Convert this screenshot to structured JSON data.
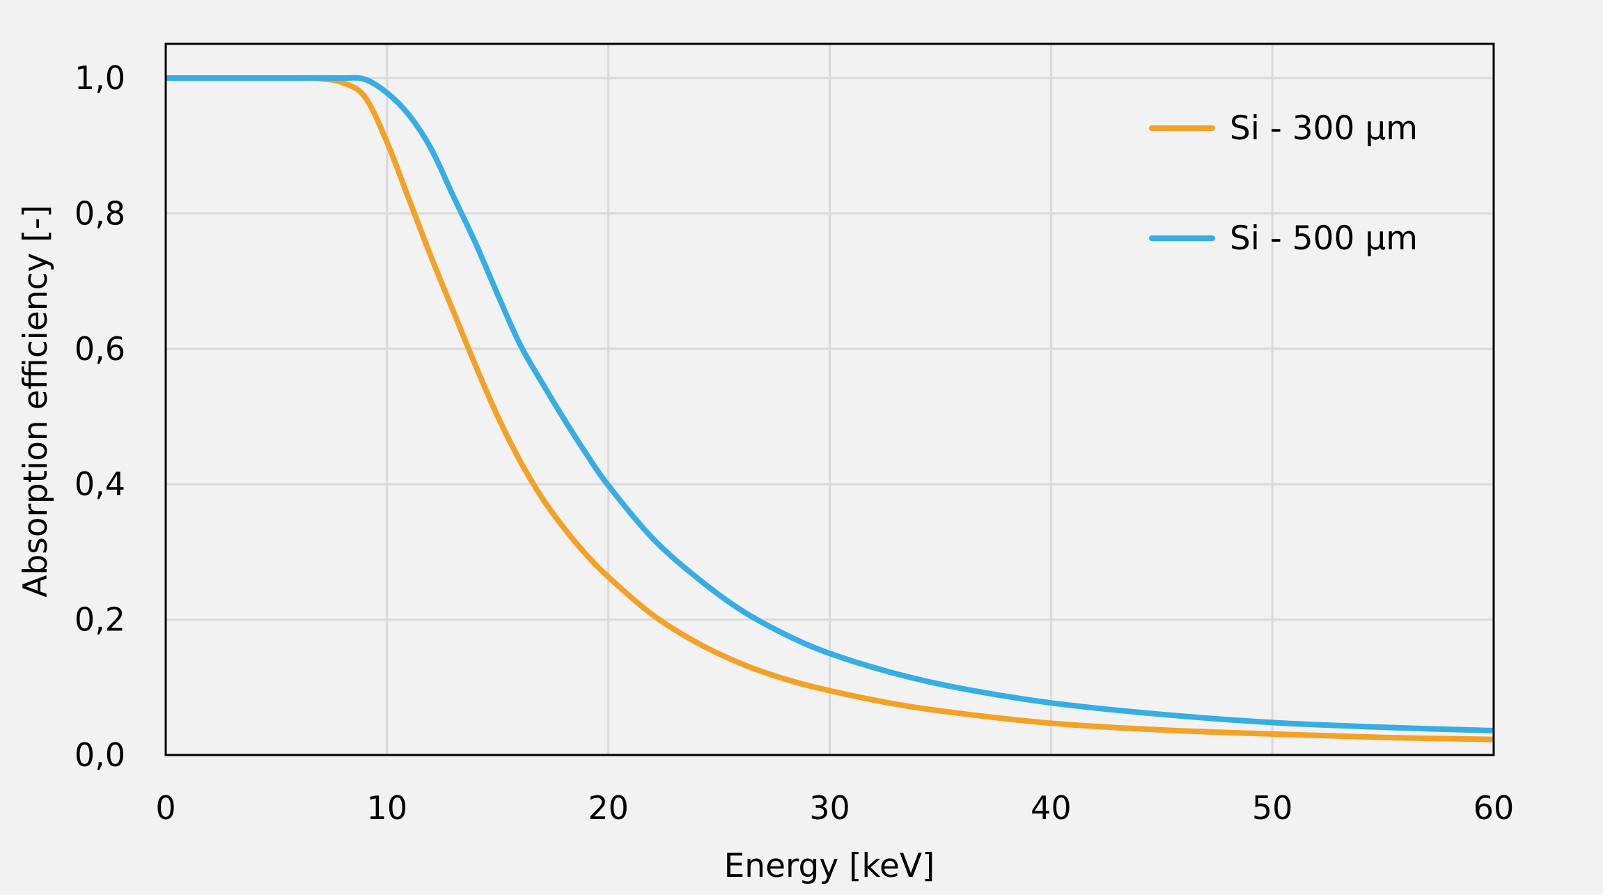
{
  "chart_data": {
    "type": "line",
    "title": "",
    "xlabel": "Energy [keV]",
    "ylabel": "Absorption efficiency [-]",
    "xlim": [
      0,
      60
    ],
    "ylim": [
      0,
      1.05
    ],
    "x_ticks": [
      0,
      10,
      20,
      30,
      40,
      50,
      60
    ],
    "x_tick_labels": [
      "0",
      "10",
      "20",
      "30",
      "40",
      "50",
      "60"
    ],
    "y_ticks": [
      0,
      0.2,
      0.4,
      0.6,
      0.8,
      1.0
    ],
    "y_tick_labels": [
      "0,0",
      "0,2",
      "0,4",
      "0,6",
      "0,8",
      "1,0"
    ],
    "grid": true,
    "legend_position": "top-right",
    "series": [
      {
        "name": "Si - 300 µm",
        "color": "#f2a227",
        "x": [
          0,
          2,
          4,
          6,
          7,
          8,
          9,
          10,
          11,
          12,
          13,
          14,
          15,
          16,
          17,
          18,
          19,
          20,
          22,
          24,
          26,
          28,
          30,
          33,
          36,
          40,
          45,
          50,
          55,
          60
        ],
        "y": [
          1.0,
          1.0,
          1.0,
          1.0,
          0.999,
          0.993,
          0.972,
          0.905,
          0.82,
          0.735,
          0.655,
          0.575,
          0.5,
          0.435,
          0.38,
          0.335,
          0.296,
          0.263,
          0.207,
          0.166,
          0.135,
          0.112,
          0.095,
          0.075,
          0.061,
          0.047,
          0.037,
          0.031,
          0.026,
          0.023
        ]
      },
      {
        "name": "Si - 500 µm",
        "color": "#36ade3",
        "x": [
          0,
          2,
          4,
          6,
          8,
          9,
          10,
          11,
          12,
          13,
          14,
          15,
          16,
          17,
          18,
          19,
          20,
          22,
          24,
          26,
          28,
          30,
          33,
          36,
          40,
          45,
          50,
          55,
          60
        ],
        "y": [
          1.0,
          1.0,
          1.0,
          1.0,
          1.0,
          0.998,
          0.978,
          0.945,
          0.895,
          0.825,
          0.756,
          0.68,
          0.607,
          0.55,
          0.496,
          0.445,
          0.398,
          0.32,
          0.262,
          0.214,
          0.178,
          0.15,
          0.12,
          0.098,
          0.077,
          0.06,
          0.048,
          0.041,
          0.036
        ]
      }
    ]
  }
}
